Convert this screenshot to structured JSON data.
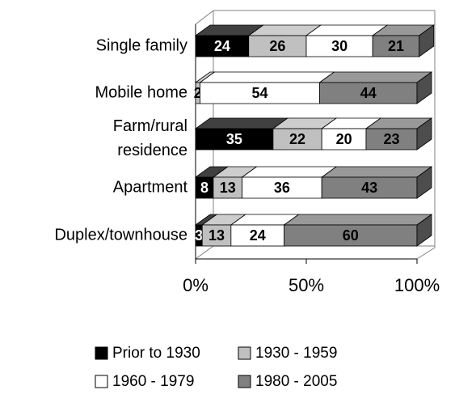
{
  "chart_data": {
    "type": "bar",
    "orientation": "horizontal",
    "stacked": true,
    "three_d": true,
    "categories": [
      "Single family",
      "Mobile home",
      "Farm/rural\nresidence",
      "Apartment",
      "Duplex/townhouse"
    ],
    "series": [
      {
        "name": "Prior to 1930",
        "color": "#000000",
        "values": [
          24,
          null,
          35,
          8,
          3
        ]
      },
      {
        "name": "1930 - 1959",
        "color": "#c0c0c0",
        "values": [
          26,
          2,
          22,
          13,
          13
        ]
      },
      {
        "name": "1960 - 1979",
        "color": "#ffffff",
        "values": [
          30,
          54,
          20,
          36,
          24
        ]
      },
      {
        "name": "1980 - 2005",
        "color": "#808080",
        "values": [
          21,
          44,
          23,
          43,
          60
        ]
      }
    ],
    "xlim": [
      0,
      100
    ],
    "xticks": [
      {
        "value": 0,
        "label": "0%"
      },
      {
        "value": 50,
        "label": "50%"
      },
      {
        "value": 100,
        "label": "100%"
      }
    ],
    "legend": "bottom"
  }
}
